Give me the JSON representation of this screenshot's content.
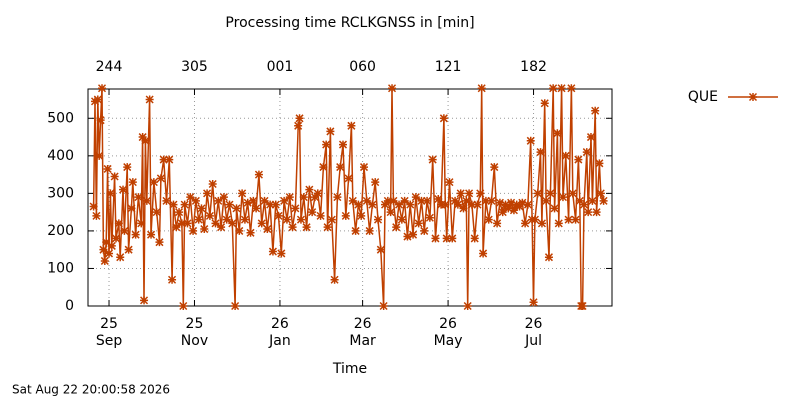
{
  "chart_data": {
    "type": "line",
    "title": "Processing time RCLKGNSS in [min]",
    "xlabel": "Time",
    "footer": "Sat Aug 22 20:00:58 2026",
    "legend": "upper right",
    "grid": true,
    "ylim": [
      0,
      578
    ],
    "yticks": [
      0,
      100,
      200,
      300,
      400,
      500
    ],
    "xlim": [
      "2025-08-17",
      "2026-08-26"
    ],
    "xticks": [
      {
        "value": "2025-09-01",
        "label": "25\nSep"
      },
      {
        "value": "2025-11-01",
        "label": "25\nNov"
      },
      {
        "value": "2026-01-01",
        "label": "26\nJan"
      },
      {
        "value": "2026-03-01",
        "label": "26\nMar"
      },
      {
        "value": "2026-05-01",
        "label": "26\nMay"
      },
      {
        "value": "2026-07-01",
        "label": "26\nJul"
      }
    ],
    "x2ticks": [
      {
        "value": "2025-09-01",
        "label": "244"
      },
      {
        "value": "2025-11-01",
        "label": "305"
      },
      {
        "value": "2026-01-01",
        "label": "001"
      },
      {
        "value": "2026-03-01",
        "label": "060"
      },
      {
        "value": "2026-05-01",
        "label": "121"
      },
      {
        "value": "2026-07-01",
        "label": "182"
      }
    ],
    "x": [
      "2025-08-21",
      "2025-08-22",
      "2025-08-23",
      "2025-08-24",
      "2025-08-25",
      "2025-08-26",
      "2025-08-27",
      "2025-08-28",
      "2025-08-29",
      "2025-08-30",
      "2025-08-31",
      "2025-09-01",
      "2025-09-02",
      "2025-09-03",
      "2025-09-05",
      "2025-09-06",
      "2025-09-08",
      "2025-09-09",
      "2025-09-11",
      "2025-09-12",
      "2025-09-14",
      "2025-09-15",
      "2025-09-17",
      "2025-09-18",
      "2025-09-20",
      "2025-09-22",
      "2025-09-24",
      "2025-09-25",
      "2025-09-26",
      "2025-09-27",
      "2025-09-28",
      "2025-09-30",
      "2025-10-01",
      "2025-10-03",
      "2025-10-05",
      "2025-10-07",
      "2025-10-08",
      "2025-10-10",
      "2025-10-12",
      "2025-10-14",
      "2025-10-16",
      "2025-10-17",
      "2025-10-19",
      "2025-10-21",
      "2025-10-23",
      "2025-10-24",
      "2025-10-25",
      "2025-10-27",
      "2025-10-29",
      "2025-10-31",
      "2025-11-02",
      "2025-11-04",
      "2025-11-06",
      "2025-11-08",
      "2025-11-10",
      "2025-11-12",
      "2025-11-14",
      "2025-11-16",
      "2025-11-18",
      "2025-11-20",
      "2025-11-22",
      "2025-11-24",
      "2025-11-26",
      "2025-11-28",
      "2025-11-30",
      "2025-12-01",
      "2025-12-03",
      "2025-12-05",
      "2025-12-07",
      "2025-12-09",
      "2025-12-11",
      "2025-12-13",
      "2025-12-15",
      "2025-12-17",
      "2025-12-19",
      "2025-12-21",
      "2025-12-23",
      "2025-12-25",
      "2025-12-27",
      "2025-12-29",
      "2025-12-31",
      "2026-01-02",
      "2026-01-04",
      "2026-01-06",
      "2026-01-08",
      "2026-01-10",
      "2026-01-12",
      "2026-01-14",
      "2026-01-15",
      "2026-01-16",
      "2026-01-18",
      "2026-01-20",
      "2026-01-22",
      "2026-01-24",
      "2026-01-26",
      "2026-01-28",
      "2026-01-30",
      "2026-02-01",
      "2026-02-03",
      "2026-02-04",
      "2026-02-06",
      "2026-02-07",
      "2026-02-09",
      "2026-02-11",
      "2026-02-13",
      "2026-02-15",
      "2026-02-17",
      "2026-02-19",
      "2026-02-21",
      "2026-02-22",
      "2026-02-24",
      "2026-02-26",
      "2026-02-28",
      "2026-03-02",
      "2026-03-04",
      "2026-03-06",
      "2026-03-08",
      "2026-03-10",
      "2026-03-12",
      "2026-03-14",
      "2026-03-16",
      "2026-03-17",
      "2026-03-19",
      "2026-03-21",
      "2026-03-22",
      "2026-03-23",
      "2026-03-25",
      "2026-03-27",
      "2026-03-29",
      "2026-03-31",
      "2026-04-02",
      "2026-04-04",
      "2026-04-06",
      "2026-04-08",
      "2026-04-10",
      "2026-04-12",
      "2026-04-14",
      "2026-04-16",
      "2026-04-18",
      "2026-04-20",
      "2026-04-22",
      "2026-04-24",
      "2026-04-26",
      "2026-04-28",
      "2026-04-29",
      "2026-04-30",
      "2026-05-02",
      "2026-05-04",
      "2026-05-06",
      "2026-05-08",
      "2026-05-10",
      "2026-05-12",
      "2026-05-14",
      "2026-05-15",
      "2026-05-16",
      "2026-05-18",
      "2026-05-20",
      "2026-05-22",
      "2026-05-24",
      "2026-05-25",
      "2026-05-26",
      "2026-05-28",
      "2026-05-30",
      "2026-06-01",
      "2026-06-03",
      "2026-06-05",
      "2026-06-07",
      "2026-06-09",
      "2026-06-11",
      "2026-06-13",
      "2026-06-15",
      "2026-06-17",
      "2026-06-19",
      "2026-06-21",
      "2026-06-23",
      "2026-06-25",
      "2026-06-27",
      "2026-06-29",
      "2026-06-30",
      "2026-07-01",
      "2026-07-02",
      "2026-07-04",
      "2026-07-06",
      "2026-07-07",
      "2026-07-09",
      "2026-07-10",
      "2026-07-12",
      "2026-07-13",
      "2026-07-15",
      "2026-07-16",
      "2026-07-18",
      "2026-07-19",
      "2026-07-21",
      "2026-07-22",
      "2026-07-24",
      "2026-07-26",
      "2026-07-28",
      "2026-07-29",
      "2026-07-31",
      "2026-08-02",
      "2026-08-03",
      "2026-08-04",
      "2026-08-05",
      "2026-08-06",
      "2026-08-08",
      "2026-08-09",
      "2026-08-11",
      "2026-08-12",
      "2026-08-14",
      "2026-08-15",
      "2026-08-17",
      "2026-08-18",
      "2026-08-20"
    ],
    "series": [
      {
        "name": "QUE",
        "color": "#c04000",
        "values": [
          265,
          545,
          240,
          550,
          400,
          495,
          580,
          150,
          120,
          170,
          365,
          140,
          300,
          160,
          345,
          180,
          220,
          130,
          310,
          200,
          370,
          150,
          260,
          330,
          190,
          290,
          220,
          450,
          15,
          440,
          280,
          550,
          190,
          330,
          250,
          170,
          340,
          390,
          280,
          390,
          70,
          270,
          210,
          250,
          220,
          0,
          270,
          220,
          290,
          200,
          280,
          230,
          260,
          205,
          300,
          240,
          325,
          220,
          280,
          210,
          290,
          230,
          270,
          220,
          0,
          260,
          200,
          300,
          230,
          275,
          195,
          280,
          260,
          350,
          220,
          280,
          205,
          270,
          145,
          270,
          240,
          140,
          280,
          230,
          290,
          210,
          260,
          480,
          500,
          230,
          290,
          210,
          310,
          250,
          290,
          300,
          240,
          370,
          430,
          210,
          465,
          230,
          70,
          290,
          370,
          430,
          240,
          340,
          480,
          280,
          200,
          270,
          240,
          370,
          280,
          200,
          270,
          330,
          230,
          150,
          0,
          270,
          280,
          250,
          580,
          280,
          210,
          270,
          230,
          280,
          185,
          270,
          190,
          290,
          220,
          280,
          200,
          280,
          235,
          390,
          180,
          285,
          270,
          500,
          270,
          180,
          330,
          180,
          280,
          270,
          300,
          260,
          280,
          0,
          300,
          270,
          180,
          270,
          300,
          580,
          140,
          280,
          230,
          280,
          370,
          220,
          275,
          250,
          270,
          260,
          275,
          255,
          270,
          265,
          275,
          220,
          270,
          440,
          230,
          10,
          230,
          300,
          410,
          220,
          540,
          280,
          130,
          300,
          580,
          260,
          460,
          220,
          580,
          290,
          400,
          230,
          580,
          300,
          230,
          390,
          280,
          0,
          0,
          270,
          410,
          250,
          450,
          280,
          520,
          250,
          380,
          300,
          280
        ]
      }
    ]
  }
}
